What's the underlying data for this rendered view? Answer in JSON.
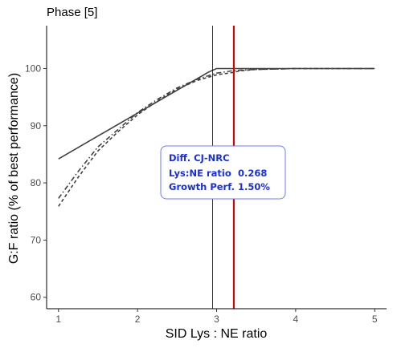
{
  "chart_data": {
    "type": "line",
    "title": "Phase [5]",
    "xlabel": "SID Lys : NE ratio",
    "ylabel": "G:F ratio (% of best performance)",
    "xlim": [
      0.85,
      5.15
    ],
    "ylim": [
      58,
      107.5
    ],
    "xticks": [
      1,
      2,
      3,
      4,
      5
    ],
    "yticks": [
      60,
      70,
      80,
      90,
      100
    ],
    "grid": false,
    "legend": "none",
    "series": [
      {
        "style": "solid",
        "color": "#404040",
        "x": [
          1.0,
          1.5,
          2.0,
          2.5,
          2.9,
          3.0,
          3.1,
          3.5,
          4.0,
          4.5,
          5.0
        ],
        "y": [
          84.2,
          88.2,
          92.2,
          96.2,
          99.4,
          100.0,
          100.0,
          100.0,
          100.0,
          100.0,
          100.0
        ]
      },
      {
        "style": "dotdash",
        "color": "#404040",
        "x": [
          1.0,
          1.25,
          1.5,
          1.75,
          2.0,
          2.25,
          2.5,
          2.75,
          3.0,
          3.2,
          3.3,
          3.5,
          4.0,
          4.5,
          5.0
        ],
        "y": [
          77.3,
          82.0,
          86.3,
          89.3,
          92.3,
          94.6,
          96.6,
          98.1,
          99.2,
          99.6,
          99.7,
          99.85,
          100.0,
          100.0,
          100.0
        ]
      },
      {
        "style": "dashed",
        "color": "#404040",
        "x": [
          1.0,
          1.25,
          1.5,
          1.75,
          2.0,
          2.25,
          2.5,
          2.75,
          3.0,
          3.2,
          3.3,
          3.5,
          4.0,
          4.5,
          5.0
        ],
        "y": [
          75.9,
          81.0,
          85.6,
          88.9,
          91.9,
          94.3,
          96.4,
          97.9,
          98.9,
          99.3,
          99.6,
          99.85,
          100.0,
          100.0,
          100.0
        ]
      }
    ],
    "vlines": [
      {
        "x": 2.95,
        "color": "#000000",
        "width": 0.8
      },
      {
        "x": 3.218,
        "color": "#dd0000",
        "width": 2.2
      }
    ],
    "annotation": {
      "title": "Diff. CJ-NRC",
      "rows": [
        {
          "label": "Lys:NE ratio",
          "value": "0.268"
        },
        {
          "label": "Growth Perf.",
          "value": "1.50%"
        }
      ],
      "border_color": "#6b7cf0",
      "text_color": "#1a2fd6"
    }
  }
}
